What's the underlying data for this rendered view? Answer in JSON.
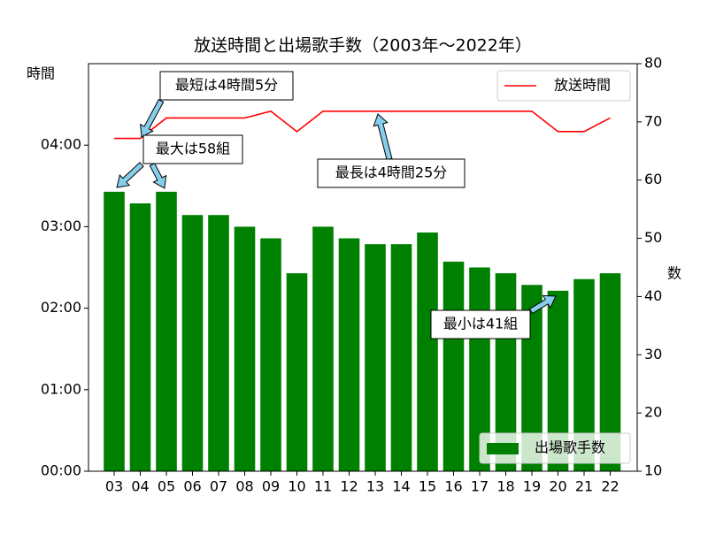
{
  "chart_data": {
    "type": "bar_line",
    "title": "放送時間と出場歌手数（2003年～2022年）",
    "y_label": "時間",
    "y2_label": "数",
    "categories": [
      "03",
      "04",
      "05",
      "06",
      "07",
      "08",
      "09",
      "10",
      "11",
      "12",
      "13",
      "14",
      "15",
      "16",
      "17",
      "18",
      "19",
      "20",
      "21",
      "22"
    ],
    "series": [
      {
        "name": "出場歌手数",
        "type": "bar",
        "color": "#008000",
        "axis": "y2",
        "values": [
          58,
          56,
          58,
          54,
          54,
          52,
          50,
          44,
          52,
          50,
          49,
          49,
          51,
          46,
          45,
          44,
          42,
          41,
          43,
          44
        ]
      },
      {
        "name": "放送時間",
        "type": "line",
        "color": "#ff0000",
        "axis": "y",
        "values": [
          245,
          245,
          260,
          260,
          260,
          260,
          265,
          250,
          265,
          265,
          265,
          265,
          265,
          265,
          265,
          265,
          265,
          250,
          250,
          260
        ]
      }
    ],
    "ylim": [
      0,
      300
    ],
    "yticks": [
      {
        "value": 0,
        "label": "00:00"
      },
      {
        "value": 60,
        "label": "01:00"
      },
      {
        "value": 120,
        "label": "02:00"
      },
      {
        "value": 180,
        "label": "03:00"
      },
      {
        "value": 240,
        "label": "04:00"
      }
    ],
    "y2lim": [
      10,
      80
    ],
    "y2ticks": [
      10,
      20,
      30,
      40,
      50,
      60,
      70,
      80
    ],
    "legend_line": "upper right",
    "legend_bar": "lower right",
    "annotations": [
      "最短は4時間5分",
      "最大は58組",
      "最長は4時間25分",
      "最小は41組"
    ]
  }
}
